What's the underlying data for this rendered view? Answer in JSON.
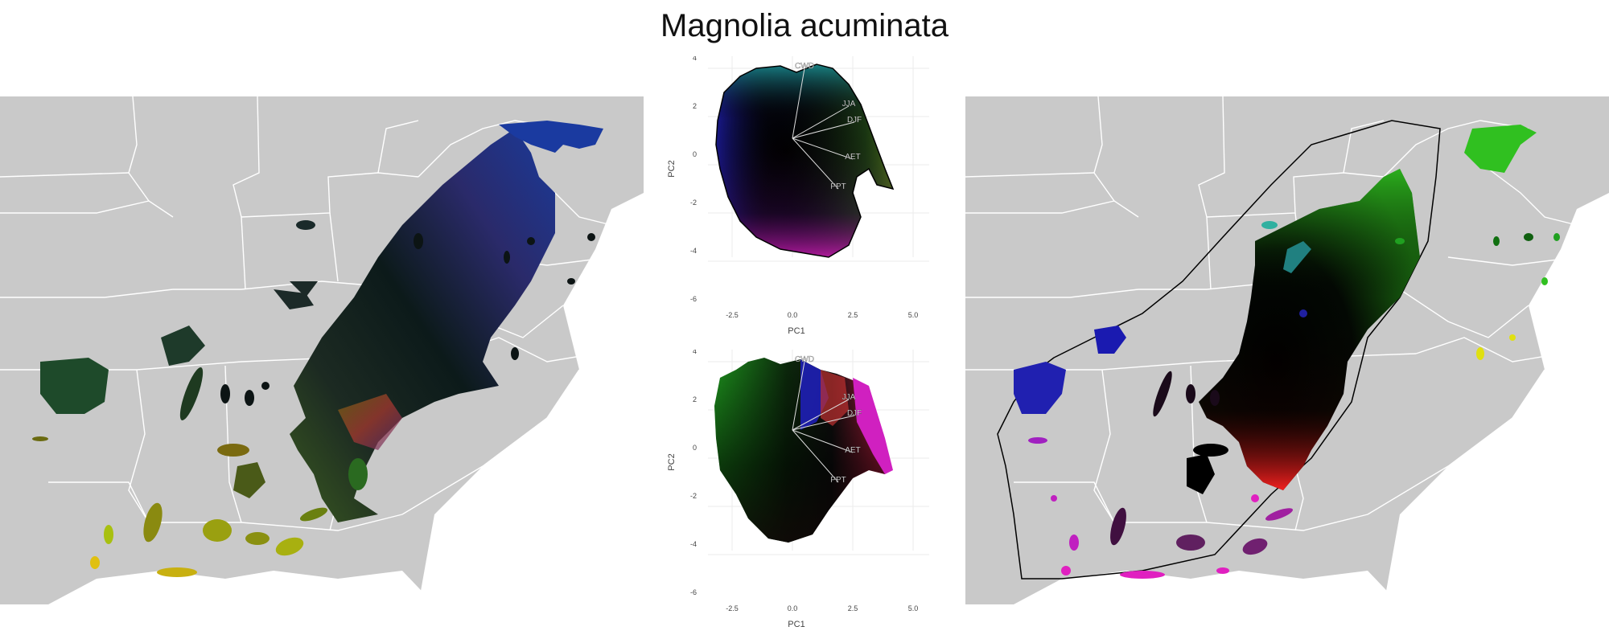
{
  "title": "Magnolia acuminata",
  "maps": {
    "left": {
      "name": "range-map-left"
    },
    "right": {
      "name": "range-map-right"
    }
  },
  "pca_plots": [
    {
      "name": "pca-plot-top",
      "xlabel": "PC1",
      "ylabel": "PC2",
      "x_ticks": [
        "-2.5",
        "0.0",
        "2.5",
        "5.0"
      ],
      "y_ticks": [
        "4",
        "2",
        "0",
        "-2",
        "-4",
        "-6"
      ],
      "vectors": [
        "CWD",
        "JJA",
        "DJF",
        "AET",
        "PPT"
      ]
    },
    {
      "name": "pca-plot-bottom",
      "xlabel": "PC1",
      "ylabel": "PC2",
      "x_ticks": [
        "-2.5",
        "0.0",
        "2.5",
        "5.0"
      ],
      "y_ticks": [
        "4",
        "2",
        "0",
        "-2",
        "-4",
        "-6"
      ],
      "vectors": [
        "CWD",
        "JJA",
        "DJF",
        "AET",
        "PPT"
      ]
    }
  ],
  "colors": {
    "map_background": "#c9c9c9",
    "state_borders": "#ffffff",
    "grid": "#ebebeb",
    "axis_text": "#444444"
  }
}
